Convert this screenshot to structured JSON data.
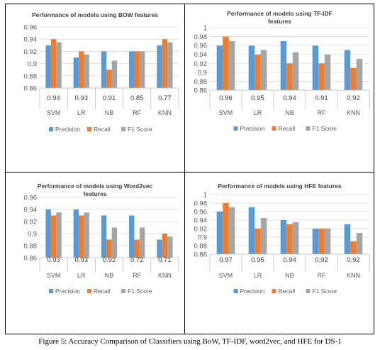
{
  "caption": "Figure 5: Accuracy Comparison of Classifiers using BoW, TF-IDF, word2vec, and HFE for DS-1",
  "legend": [
    "Precision",
    "Recall",
    "F1 Score"
  ],
  "colors": {
    "Precision": "#5b9bd5",
    "Recall": "#ed7d31",
    "F1 Score": "#a5a5a5"
  },
  "chart_data": [
    {
      "type": "bar",
      "title": "Performance of models using BOW features",
      "categories": [
        "SVM",
        "LR",
        "NB",
        "RF",
        "KNN"
      ],
      "accuracy_row": [
        "0.94",
        "0.93",
        "0.91",
        "0.85",
        "0.77"
      ],
      "series": [
        {
          "name": "Precision",
          "values": [
            0.93,
            0.91,
            0.92,
            0.92,
            0.93
          ]
        },
        {
          "name": "Recall",
          "values": [
            0.94,
            0.92,
            0.89,
            0.92,
            0.94
          ]
        },
        {
          "name": "F1 Score",
          "values": [
            0.935,
            0.915,
            0.905,
            0.92,
            0.935
          ]
        }
      ],
      "yticks": [
        "0.86",
        "0.88",
        "0.9",
        "0.92",
        "0.94",
        "0.96"
      ],
      "ylim": [
        0.86,
        0.96
      ],
      "grid": true,
      "legend_position": "bottom"
    },
    {
      "type": "bar",
      "title": "Performance of models using TF-IDF features",
      "categories": [
        "SVM",
        "LR",
        "NB",
        "RF",
        "KNN"
      ],
      "accuracy_row": [
        "0.96",
        "0.95",
        "0.94",
        "0.91",
        "0.92"
      ],
      "series": [
        {
          "name": "Precision",
          "values": [
            0.96,
            0.96,
            0.97,
            0.96,
            0.95
          ]
        },
        {
          "name": "Recall",
          "values": [
            0.98,
            0.94,
            0.92,
            0.92,
            0.91
          ]
        },
        {
          "name": "F1 Score",
          "values": [
            0.97,
            0.95,
            0.945,
            0.94,
            0.93
          ]
        }
      ],
      "yticks": [
        "0.86",
        "0.88",
        "0.9",
        "0.92",
        "0.94",
        "0.96",
        "0.98",
        "1"
      ],
      "ylim": [
        0.86,
        1.0
      ],
      "grid": true,
      "legend_position": "bottom"
    },
    {
      "type": "bar",
      "title": "Performance of models using Word2vec features",
      "categories": [
        "SVM",
        "LR",
        "NB",
        "RF",
        "KNN"
      ],
      "accuracy_row": [
        "0.93",
        "0.93",
        "0.92",
        "0.72",
        "0.71"
      ],
      "series": [
        {
          "name": "Precision",
          "values": [
            0.94,
            0.94,
            0.93,
            0.93,
            0.89
          ]
        },
        {
          "name": "Recall",
          "values": [
            0.93,
            0.93,
            0.89,
            0.89,
            0.9
          ]
        },
        {
          "name": "F1 Score",
          "values": [
            0.935,
            0.935,
            0.91,
            0.91,
            0.895
          ]
        }
      ],
      "yticks": [
        "0.86",
        "0.88",
        "0.9",
        "0.92",
        "0.94",
        "0.96"
      ],
      "ylim": [
        0.86,
        0.96
      ],
      "grid": true,
      "legend_position": "bottom"
    },
    {
      "type": "bar",
      "title": "Performance of models using HFE features",
      "categories": [
        "SVM",
        "LR",
        "NB",
        "RF",
        "KNN"
      ],
      "accuracy_row": [
        "0.97",
        "0.95",
        "0.94",
        "0.92",
        "0.92"
      ],
      "series": [
        {
          "name": "Precision",
          "values": [
            0.96,
            0.97,
            0.94,
            0.92,
            0.93
          ]
        },
        {
          "name": "Recall",
          "values": [
            0.98,
            0.92,
            0.93,
            0.92,
            0.89
          ]
        },
        {
          "name": "F1 Score",
          "values": [
            0.97,
            0.945,
            0.935,
            0.92,
            0.91
          ]
        }
      ],
      "yticks": [
        "0.86",
        "0.88",
        "0.9",
        "0.92",
        "0.94",
        "0.96",
        "0.98",
        "1"
      ],
      "ylim": [
        0.86,
        1.0
      ],
      "grid": true,
      "legend_position": "bottom"
    }
  ]
}
